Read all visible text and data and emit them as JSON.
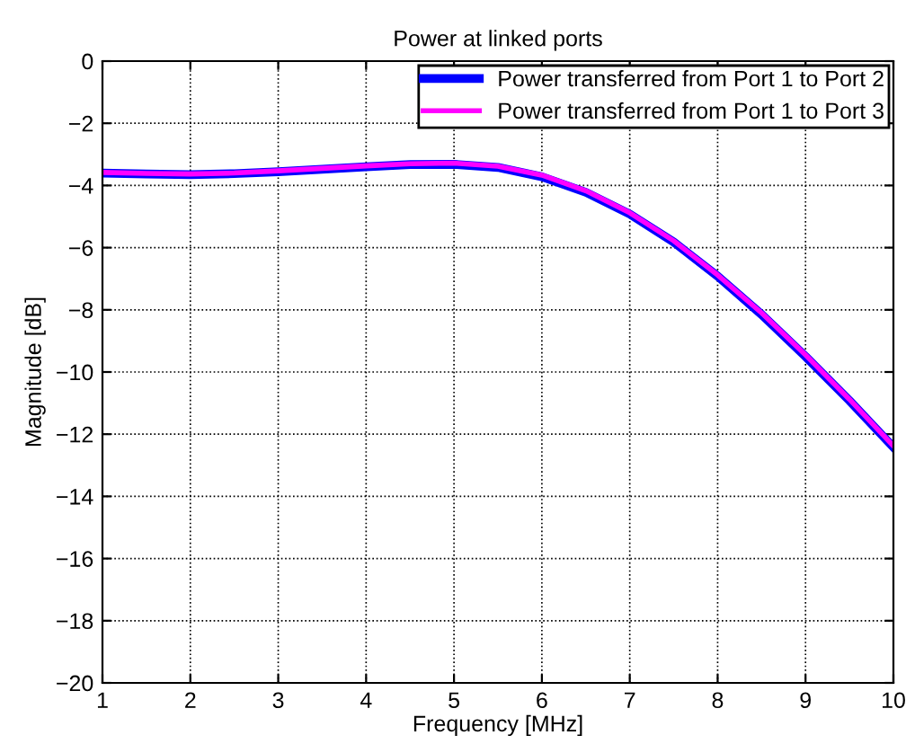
{
  "chart_data": {
    "type": "line",
    "title": "Power at linked ports",
    "xlabel": "Frequency [MHz]",
    "ylabel": "Magnitude [dB]",
    "x": [
      1,
      1.5,
      2,
      2.5,
      3,
      3.5,
      4,
      4.5,
      5,
      5.5,
      6,
      6.5,
      7,
      7.5,
      8,
      8.5,
      9,
      9.5,
      10
    ],
    "series": [
      {
        "name": "Power transferred from Port 1 to Port 2",
        "color": "#0000ff",
        "values": [
          -3.6,
          -3.63,
          -3.65,
          -3.62,
          -3.56,
          -3.48,
          -3.4,
          -3.33,
          -3.32,
          -3.42,
          -3.72,
          -4.22,
          -4.92,
          -5.82,
          -6.92,
          -8.15,
          -9.5,
          -10.92,
          -12.42
        ]
      },
      {
        "name": "Power transferred from Port 1 to Port 3",
        "color": "#ff00ff",
        "values": [
          -3.58,
          -3.61,
          -3.63,
          -3.6,
          -3.53,
          -3.45,
          -3.37,
          -3.3,
          -3.28,
          -3.38,
          -3.67,
          -4.17,
          -4.88,
          -5.78,
          -6.88,
          -8.1,
          -9.45,
          -10.88,
          -12.38
        ]
      }
    ],
    "xlim": [
      1,
      10
    ],
    "xticks": [
      1,
      2,
      3,
      4,
      5,
      6,
      7,
      8,
      9,
      10
    ],
    "ylim": [
      -20,
      0
    ],
    "yticks": [
      -20,
      -18,
      -16,
      -14,
      -12,
      -10,
      -8,
      -6,
      -4,
      -2,
      0
    ],
    "grid": true,
    "legend": "top right",
    "line_style": "solid",
    "marker": "none"
  }
}
